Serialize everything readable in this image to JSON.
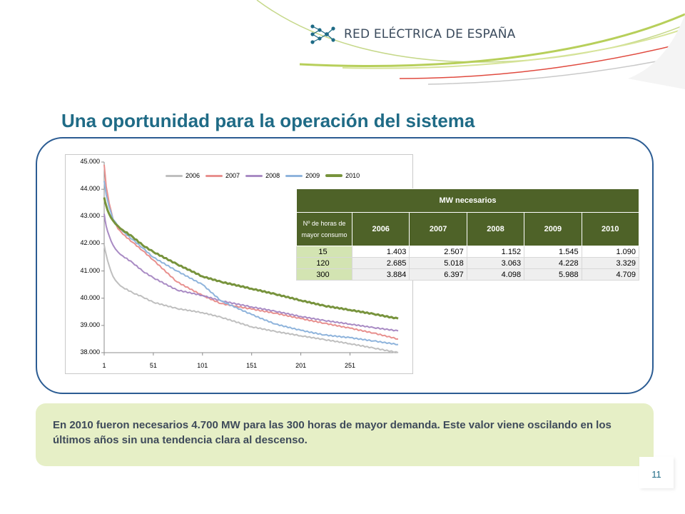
{
  "header": {
    "company": "RED ELÉCTRICA DE ESPAÑA",
    "logo_icon": "network-nodes-icon"
  },
  "slide": {
    "title": "Una oportunidad para la operación del sistema",
    "page_number": "11"
  },
  "chart_data": {
    "type": "line",
    "xlabel": "",
    "ylabel": "",
    "x_ticks": [
      "1",
      "51",
      "101",
      "151",
      "201",
      "251"
    ],
    "x_range": [
      1,
      300
    ],
    "y_ticks": [
      "45.000",
      "44.000",
      "43.000",
      "42.000",
      "41.000",
      "40.000",
      "39.000",
      "38.000"
    ],
    "ylim": [
      38000,
      45000
    ],
    "legend_position": "top",
    "grid": false,
    "x": [
      1,
      3,
      6,
      10,
      15,
      20,
      30,
      40,
      51,
      75,
      101,
      120,
      151,
      175,
      201,
      225,
      251,
      275,
      300
    ],
    "series": [
      {
        "name": "2006",
        "color": "#bfbfbf",
        "values": [
          41950,
          41600,
          41200,
          40800,
          40550,
          40400,
          40200,
          40050,
          39850,
          39620,
          39470,
          39300,
          38950,
          38780,
          38620,
          38480,
          38330,
          38170,
          38000
        ]
      },
      {
        "name": "2007",
        "color": "#e8908e",
        "values": [
          44900,
          44100,
          43500,
          42900,
          42550,
          42350,
          42050,
          41750,
          41400,
          40600,
          40100,
          39800,
          39600,
          39450,
          39250,
          39080,
          38900,
          38720,
          38500
        ]
      },
      {
        "name": "2008",
        "color": "#a98bc4",
        "values": [
          43100,
          42650,
          42300,
          41950,
          41700,
          41550,
          41300,
          41000,
          40750,
          40300,
          40100,
          39900,
          39680,
          39520,
          39330,
          39180,
          39050,
          38920,
          38800
        ]
      },
      {
        "name": "2009",
        "color": "#8fb4dc",
        "values": [
          44300,
          43800,
          43350,
          42900,
          42650,
          42450,
          42150,
          41850,
          41500,
          41000,
          40500,
          39900,
          39400,
          39050,
          38820,
          38650,
          38550,
          38430,
          38300
        ]
      },
      {
        "name": "2010",
        "color": "#77933c",
        "values": [
          43700,
          43400,
          43100,
          42850,
          42650,
          42500,
          42250,
          41950,
          41700,
          41250,
          40800,
          40600,
          40350,
          40150,
          39920,
          39720,
          39570,
          39420,
          39250
        ]
      }
    ]
  },
  "table": {
    "title": "MW necesarios",
    "row_header": "Nº de horas de mayor consumo",
    "columns": [
      "2006",
      "2007",
      "2008",
      "2009",
      "2010"
    ],
    "rows": [
      {
        "label": "15",
        "values": [
          "1.403",
          "2.507",
          "1.152",
          "1.545",
          "1.090"
        ]
      },
      {
        "label": "120",
        "values": [
          "2.685",
          "5.018",
          "3.063",
          "4.228",
          "3.329"
        ]
      },
      {
        "label": "300",
        "values": [
          "3.884",
          "6.397",
          "4.098",
          "5.988",
          "4.709"
        ]
      }
    ]
  },
  "note": {
    "text": "En 2010 fueron necesarios 4.700 MW para las 300 horas de mayor demanda. Este valor viene oscilando en los últimos años sin una tendencia clara al descenso."
  }
}
